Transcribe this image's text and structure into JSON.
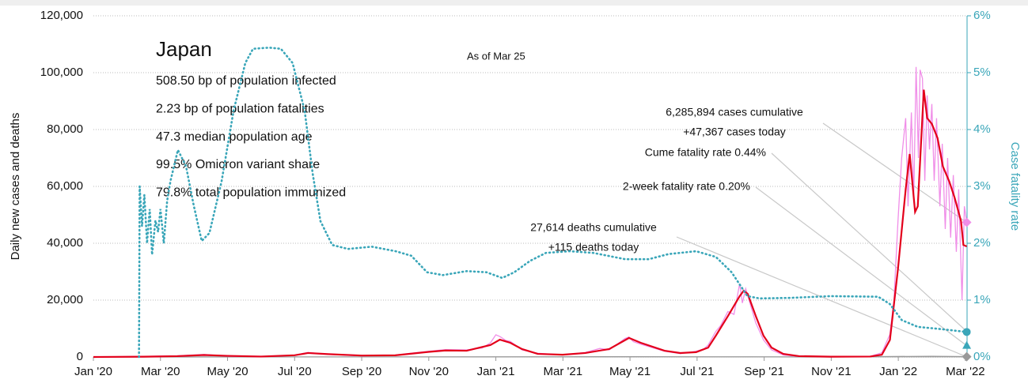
{
  "chart_data": {
    "type": "line",
    "title": "Japan",
    "subtitle": "As of Mar 25",
    "stats": [
      "508.50 bp of population infected",
      "2.23 bp of population fatalities",
      "47.3 median population age",
      "99.5% Omicron variant share",
      "79.8% total population immunized"
    ],
    "annotations": [
      "6,285,894 cases cumulative",
      "+47,367 cases today",
      "Cume fatality rate 0.44%",
      "2-week fatality rate 0.20%",
      "27,614 deaths cumulative",
      "+115 deaths today"
    ],
    "ylabel": "Daily new cases and deaths",
    "y2label": "Case fatality rate",
    "xlim": [
      0,
      26.05
    ],
    "xticks": [
      {
        "value": 0,
        "label": "Jan '20"
      },
      {
        "value": 2,
        "label": "Mar '20"
      },
      {
        "value": 4,
        "label": "May '20"
      },
      {
        "value": 6,
        "label": "Jul '20"
      },
      {
        "value": 8,
        "label": "Sep '20"
      },
      {
        "value": 10,
        "label": "Nov '20"
      },
      {
        "value": 12,
        "label": "Jan '21"
      },
      {
        "value": 14,
        "label": "Mar '21"
      },
      {
        "value": 16,
        "label": "May '21"
      },
      {
        "value": 18,
        "label": "Jul '21"
      },
      {
        "value": 20,
        "label": "Sep '21"
      },
      {
        "value": 22,
        "label": "Nov '21"
      },
      {
        "value": 24,
        "label": "Jan '22"
      },
      {
        "value": 26,
        "label": "Mar '22"
      }
    ],
    "ylim": [
      0,
      120000
    ],
    "yticks": [
      0,
      {
        "value": 20000,
        "label": "20,000"
      },
      {
        "value": 40000,
        "label": "40,000"
      },
      {
        "value": 60000,
        "label": "60,000"
      },
      {
        "value": 80000,
        "label": "80,000"
      },
      {
        "value": 100000,
        "label": "100,000"
      },
      {
        "value": 120000,
        "label": "120,000"
      }
    ],
    "y2lim": [
      0,
      6
    ],
    "y2ticks": [
      {
        "value": 0,
        "label": "0%"
      },
      {
        "value": 1,
        "label": "1%"
      },
      {
        "value": 2,
        "label": "2%"
      },
      {
        "value": 3,
        "label": "3%"
      },
      {
        "value": 4,
        "label": "4%"
      },
      {
        "value": 5,
        "label": "5%"
      },
      {
        "value": 6,
        "label": "6%"
      }
    ],
    "grid": true,
    "series": [
      {
        "color": "#999999",
        "marker": "diamond",
        "x": [
          0,
          13,
          16,
          19.5,
          22,
          25,
          26.04
        ],
        "values": [
          0,
          60,
          100,
          60,
          5,
          250,
          115
        ]
      },
      {
        "color": "#f08ee8",
        "marker": "diamond",
        "x": [
          0,
          1.5,
          2.5,
          3.3,
          4,
          5,
          6,
          6.4,
          7,
          8,
          9,
          10,
          10.5,
          11.13,
          11.6,
          11.84,
          12.0,
          12.12,
          12.3,
          12.43,
          12.78,
          13.25,
          13.99,
          14.67,
          15.1,
          15.38,
          15.7,
          15.85,
          15.97,
          16.1,
          16.32,
          17.03,
          17.5,
          17.97,
          18.2,
          18.33,
          18.56,
          18.7,
          18.92,
          19.1,
          19.27,
          19.35,
          19.45,
          19.55,
          19.75,
          19.98,
          20.22,
          20.57,
          21.04,
          21.98,
          23.16,
          23.51,
          23.75,
          23.87,
          23.99,
          24.1,
          24.22,
          24.29,
          24.39,
          24.46,
          24.53,
          24.6,
          24.65,
          24.72,
          24.79,
          24.86,
          24.93,
          25.0,
          25.07,
          25.14,
          25.24,
          25.31,
          25.4,
          25.47,
          25.56,
          25.64,
          25.73,
          25.8,
          25.9,
          25.97,
          26.04
        ],
        "values": [
          0,
          200,
          400,
          900,
          300,
          100,
          700,
          1600,
          900,
          400,
          700,
          2000,
          2600,
          2500,
          3200,
          5000,
          7800,
          7200,
          5800,
          5500,
          2500,
          1300,
          700,
          1600,
          3000,
          2500,
          5200,
          6500,
          7000,
          5400,
          4500,
          2000,
          1200,
          2000,
          2800,
          4200,
          9000,
          11000,
          16000,
          15000,
          25800,
          19000,
          24000,
          20000,
          12000,
          6000,
          2500,
          700,
          200,
          150,
          200,
          1500,
          8000,
          20000,
          47800,
          70000,
          84000,
          53000,
          86000,
          56000,
          102000,
          70000,
          101000,
          98000,
          62000,
          92000,
          73000,
          89000,
          62000,
          84000,
          53000,
          75000,
          45000,
          70000,
          42000,
          64000,
          37000,
          59000,
          20000,
          53000,
          47367
        ]
      },
      {
        "color": "#e3001b",
        "x": [
          0,
          1.5,
          2.5,
          3.3,
          4,
          5,
          6,
          6.4,
          7,
          8,
          9,
          10,
          10.5,
          11.13,
          11.84,
          12.12,
          12.43,
          12.78,
          13.25,
          13.99,
          14.67,
          15.38,
          15.97,
          16.32,
          17.03,
          17.5,
          17.97,
          18.33,
          18.56,
          18.92,
          19.27,
          19.39,
          19.51,
          19.75,
          19.98,
          20.22,
          20.57,
          21.04,
          21.98,
          23.16,
          23.51,
          23.75,
          23.99,
          24.22,
          24.34,
          24.5,
          24.58,
          24.69,
          24.76,
          24.86,
          25.0,
          25.17,
          25.33,
          25.52,
          25.68,
          25.87,
          25.94,
          26.04
        ],
        "values": [
          0,
          100,
          300,
          700,
          400,
          150,
          600,
          1400,
          1000,
          500,
          600,
          1800,
          2300,
          2200,
          4200,
          6100,
          5000,
          2800,
          1100,
          800,
          1400,
          2800,
          6700,
          5000,
          2200,
          1400,
          1700,
          3300,
          7500,
          14400,
          21400,
          23300,
          22200,
          14400,
          7500,
          3300,
          1100,
          300,
          100,
          150,
          800,
          6000,
          31000,
          59000,
          71400,
          51000,
          53000,
          78000,
          94000,
          84000,
          82000,
          77000,
          67000,
          61700,
          56000,
          47800,
          39400,
          38900
        ]
      },
      {
        "color": "#3aa6b9",
        "axis": "y2",
        "style": "dotted",
        "marker": "circle",
        "x": [
          1.36,
          1.38,
          1.45,
          1.52,
          1.6,
          1.68,
          1.75,
          1.85,
          1.93,
          2.0,
          2.1,
          2.2,
          2.3,
          2.52,
          2.76,
          2.99,
          3.23,
          3.46,
          3.82,
          4.18,
          4.53,
          4.76,
          5.24,
          5.59,
          5.94,
          6.3,
          6.54,
          6.77,
          7.12,
          7.59,
          8.3,
          9.01,
          9.48,
          9.95,
          10.42,
          11.13,
          11.72,
          12.19,
          12.55,
          13.02,
          13.49,
          14.2,
          14.91,
          15.85,
          16.56,
          17.15,
          17.97,
          18.56,
          19.03,
          19.5,
          19.86,
          20.8,
          21.98,
          23.4,
          23.75,
          24.1,
          24.58,
          25.28,
          26.04
        ],
        "values": [
          0,
          3.0,
          2.3,
          2.85,
          2.0,
          2.6,
          1.8,
          2.4,
          2.2,
          2.6,
          2.0,
          2.75,
          3.1,
          3.64,
          3.36,
          2.67,
          2.04,
          2.18,
          3.08,
          4.33,
          5.17,
          5.42,
          5.44,
          5.42,
          5.17,
          4.33,
          3.22,
          2.39,
          1.97,
          1.9,
          1.94,
          1.86,
          1.78,
          1.49,
          1.44,
          1.51,
          1.49,
          1.39,
          1.49,
          1.69,
          1.83,
          1.86,
          1.83,
          1.72,
          1.72,
          1.81,
          1.86,
          1.76,
          1.49,
          1.07,
          1.03,
          1.04,
          1.07,
          1.06,
          0.93,
          0.65,
          0.53,
          0.49,
          0.44
        ]
      },
      {
        "color": "#3aa6b9",
        "axis": "y2",
        "marker": "triangle",
        "x": [
          26.04
        ],
        "values": [
          0.2
        ]
      }
    ]
  }
}
